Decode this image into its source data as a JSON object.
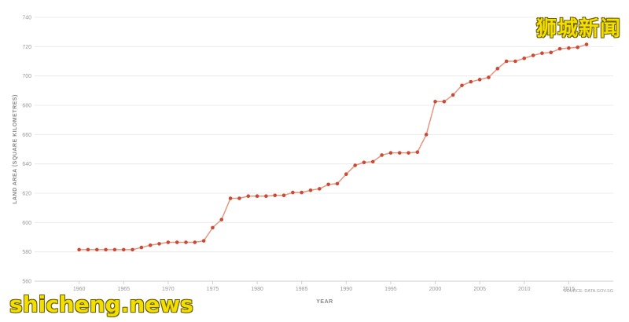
{
  "chart_data": {
    "type": "line",
    "xlabel": "YEAR",
    "ylabel": "LAND AREA (SQUARE KILOMETRES)",
    "source": "SOURCE: DATA.GOV.SG",
    "xlim": [
      1955,
      2020
    ],
    "ylim": [
      560,
      740
    ],
    "x_ticks": [
      1960,
      1965,
      1970,
      1975,
      1980,
      1985,
      1990,
      1995,
      2000,
      2005,
      2010,
      2015
    ],
    "y_ticks": [
      560,
      580,
      600,
      620,
      640,
      660,
      680,
      700,
      720,
      740
    ],
    "grid": true,
    "line_color": "#e8977e",
    "marker_color": "#c94a36",
    "series": [
      {
        "x": [
          1960,
          1961,
          1962,
          1963,
          1964,
          1965,
          1966,
          1967,
          1968,
          1969,
          1970,
          1971,
          1972,
          1973,
          1974,
          1975,
          1976,
          1977,
          1978,
          1979,
          1980,
          1981,
          1982,
          1983,
          1984,
          1985,
          1986,
          1987,
          1988,
          1989,
          1990,
          1991,
          1992,
          1993,
          1994,
          1995,
          1996,
          1997,
          1998,
          1999,
          2000,
          2001,
          2002,
          2003,
          2004,
          2005,
          2006,
          2007,
          2008,
          2009,
          2010,
          2011,
          2012,
          2013,
          2014,
          2015,
          2016,
          2017
        ],
        "values": [
          581.5,
          581.5,
          581.5,
          581.5,
          581.5,
          581.5,
          581.5,
          583,
          584.5,
          585.5,
          586.5,
          586.5,
          586.5,
          586.5,
          587.5,
          596.5,
          602,
          616.5,
          616.5,
          618,
          618,
          618,
          618.5,
          618.5,
          620.5,
          620.5,
          622,
          623,
          626,
          626.5,
          633,
          639,
          641,
          641.5,
          646,
          647.5,
          647.5,
          647.5,
          648,
          660,
          682.5,
          682.5,
          687,
          693.5,
          696,
          697.5,
          699,
          705,
          710,
          710,
          712,
          714,
          715.5,
          716,
          718.5,
          719,
          719.5,
          721.5
        ]
      }
    ]
  },
  "watermarks": {
    "cn": "狮城新闻",
    "en": "shicheng.news"
  }
}
